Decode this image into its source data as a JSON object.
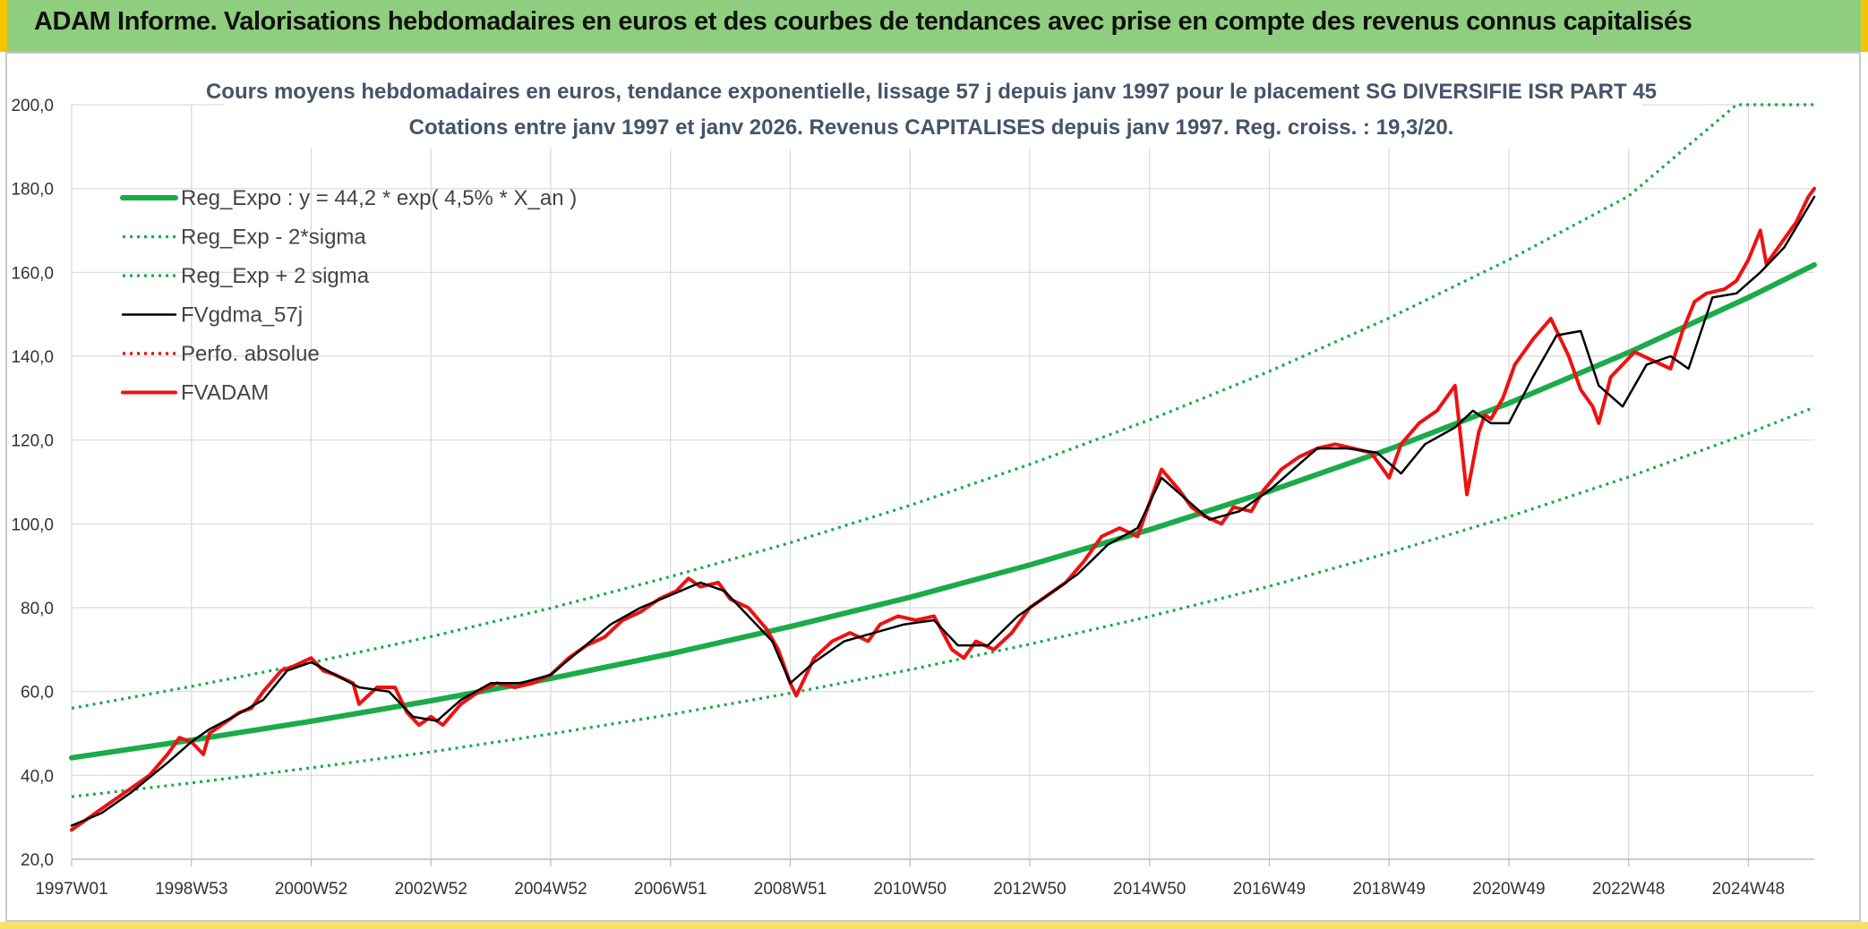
{
  "header": {
    "title": "ADAM Informe. Valorisations hebdomadaires en euros et des courbes de tendances avec prise en compte des revenus connus capitalisés"
  },
  "chart_data": {
    "type": "line",
    "title": "Cours moyens hebdomadaires en euros, tendance exponentielle, lissage 57 j depuis janv 1997 pour le placement SG DIVERSIFIE ISR PART 45",
    "subtitle": "Cotations entre janv 1997 et janv 2026. Revenus CAPITALISES depuis janv 1997. Reg. croiss. : 19,3/20.",
    "xlabel": "",
    "ylabel": "",
    "xlim": [
      1997.0,
      2026.1
    ],
    "ylim": [
      20,
      200
    ],
    "y_ticks": [
      "20,0",
      "40,0",
      "60,0",
      "80,0",
      "100,0",
      "120,0",
      "140,0",
      "160,0",
      "180,0",
      "200,0"
    ],
    "x_ticks": [
      {
        "label": "1997W01",
        "x": 1997.0
      },
      {
        "label": "1998W53",
        "x": 1999.0
      },
      {
        "label": "2000W52",
        "x": 2001.0
      },
      {
        "label": "2002W52",
        "x": 2003.0
      },
      {
        "label": "2004W52",
        "x": 2005.0
      },
      {
        "label": "2006W51",
        "x": 2007.0
      },
      {
        "label": "2008W51",
        "x": 2009.0
      },
      {
        "label": "2010W50",
        "x": 2011.0
      },
      {
        "label": "2012W50",
        "x": 2013.0
      },
      {
        "label": "2014W50",
        "x": 2015.0
      },
      {
        "label": "2016W49",
        "x": 2017.0
      },
      {
        "label": "2018W49",
        "x": 2019.0
      },
      {
        "label": "2020W49",
        "x": 2021.0
      },
      {
        "label": "2022W48",
        "x": 2023.0
      },
      {
        "label": "2024W48",
        "x": 2025.0
      }
    ],
    "grid": true,
    "legend_position": "top-left",
    "series": [
      {
        "name": "Reg_Expo : y = 44,2 * exp( 4,5% *  X_an )",
        "color": "#1aab4a",
        "style": "solid-thick",
        "x": [
          1997,
          1999,
          2001,
          2003,
          2005,
          2007,
          2009,
          2011,
          2013,
          2015,
          2017,
          2019,
          2021,
          2023,
          2025,
          2026.1
        ],
        "y": [
          44.2,
          48.4,
          52.9,
          57.8,
          63.1,
          69.0,
          75.5,
          82.5,
          90.2,
          98.6,
          107.8,
          117.8,
          128.8,
          140.9,
          154.0,
          161.8
        ]
      },
      {
        "name": "Reg_Exp - 2*sigma",
        "color": "#1aab4a",
        "style": "dotted",
        "x": [
          1997,
          1999,
          2001,
          2003,
          2005,
          2007,
          2009,
          2011,
          2013,
          2015,
          2017,
          2019,
          2021,
          2023,
          2025,
          2026.1
        ],
        "y": [
          34.9,
          38.2,
          41.8,
          45.6,
          49.9,
          54.5,
          59.6,
          65.2,
          71.3,
          77.9,
          85.1,
          93.1,
          101.7,
          111.2,
          121.6,
          127.8
        ]
      },
      {
        "name": "Reg_Exp + 2 sigma",
        "color": "#1aab4a",
        "style": "dotted",
        "x": [
          1997,
          1999,
          2001,
          2003,
          2005,
          2007,
          2009,
          2011,
          2013,
          2015,
          2017,
          2019,
          2021,
          2023,
          2024.8,
          2026.1
        ],
        "y": [
          56.0,
          61.2,
          66.9,
          73.1,
          79.9,
          87.4,
          95.5,
          104.4,
          114.2,
          124.8,
          136.4,
          149.1,
          163.0,
          178.2,
          200.0,
          200.0
        ]
      },
      {
        "name": "FVgdma_57j",
        "color": "#000000",
        "style": "solid",
        "x": [
          1997.0,
          1997.5,
          1998.0,
          1998.6,
          1999.0,
          1999.3,
          1999.7,
          2000.2,
          2000.6,
          2001.0,
          2001.4,
          2001.8,
          2002.3,
          2002.7,
          2003.1,
          2003.5,
          2004.0,
          2004.5,
          2005.0,
          2005.5,
          2006.0,
          2006.5,
          2007.0,
          2007.5,
          2007.9,
          2008.3,
          2008.7,
          2009.0,
          2009.4,
          2009.9,
          2010.4,
          2010.9,
          2011.4,
          2011.8,
          2012.3,
          2012.8,
          2013.3,
          2013.8,
          2014.3,
          2014.8,
          2015.2,
          2015.6,
          2016.0,
          2016.5,
          2017.0,
          2017.4,
          2017.8,
          2018.3,
          2018.8,
          2019.2,
          2019.6,
          2020.1,
          2020.4,
          2020.7,
          2021.0,
          2021.4,
          2021.8,
          2022.2,
          2022.5,
          2022.9,
          2023.3,
          2023.7,
          2024.0,
          2024.4,
          2024.8,
          2025.2,
          2025.6,
          2026.1
        ],
        "y": [
          28,
          31,
          36,
          43,
          48,
          51,
          54,
          58,
          65,
          67,
          64,
          61,
          60,
          54,
          53,
          58,
          62,
          62,
          64,
          70,
          76,
          80,
          83,
          86,
          84,
          78,
          72,
          62,
          67,
          72,
          74,
          76,
          77,
          71,
          71,
          78,
          83,
          88,
          95,
          99,
          111,
          106,
          101,
          103,
          108,
          113,
          118,
          118,
          117,
          112,
          119,
          123,
          127,
          124,
          124,
          135,
          145,
          146,
          133,
          128,
          138,
          140,
          137,
          154,
          155,
          160,
          166,
          178
        ]
      },
      {
        "name": "Perfo. absolue",
        "color": "#e00000",
        "style": "dotted",
        "x": [],
        "y": []
      },
      {
        "name": "FVADAM",
        "color": "#ee1111",
        "style": "solid-thick",
        "x": [
          1997.0,
          1997.2,
          1997.5,
          1997.7,
          1998.0,
          1998.3,
          1998.6,
          1998.8,
          1999.0,
          1999.2,
          1999.3,
          1999.6,
          1999.8,
          2000.0,
          2000.2,
          2000.5,
          2000.7,
          2001.0,
          2001.2,
          2001.4,
          2001.7,
          2001.8,
          2002.1,
          2002.4,
          2002.6,
          2002.8,
          2003.0,
          2003.2,
          2003.5,
          2003.8,
          2004.1,
          2004.4,
          2004.7,
          2005.0,
          2005.3,
          2005.6,
          2005.9,
          2006.2,
          2006.5,
          2006.8,
          2007.1,
          2007.3,
          2007.5,
          2007.8,
          2008.0,
          2008.3,
          2008.6,
          2008.8,
          2009.0,
          2009.1,
          2009.4,
          2009.7,
          2010.0,
          2010.3,
          2010.5,
          2010.8,
          2011.1,
          2011.4,
          2011.7,
          2011.9,
          2012.1,
          2012.4,
          2012.7,
          2013.0,
          2013.3,
          2013.6,
          2013.9,
          2014.2,
          2014.5,
          2014.8,
          2015.0,
          2015.2,
          2015.5,
          2015.7,
          2015.9,
          2016.2,
          2016.4,
          2016.7,
          2016.9,
          2017.2,
          2017.5,
          2017.8,
          2018.1,
          2018.4,
          2018.7,
          2019.0,
          2019.2,
          2019.5,
          2019.8,
          2020.1,
          2020.3,
          2020.5,
          2020.6,
          2020.7,
          2020.9,
          2021.1,
          2021.4,
          2021.7,
          2022.0,
          2022.2,
          2022.4,
          2022.5,
          2022.7,
          2022.9,
          2023.1,
          2023.4,
          2023.7,
          2023.9,
          2024.1,
          2024.3,
          2024.6,
          2024.8,
          2025.0,
          2025.2,
          2025.3,
          2025.5,
          2025.8,
          2026.0,
          2026.1
        ],
        "y": [
          27,
          29,
          32,
          34,
          37,
          40,
          45,
          49,
          48,
          45,
          50,
          53,
          55,
          56,
          60,
          65,
          66,
          68,
          65,
          64,
          62,
          57,
          61,
          61,
          55,
          52,
          54,
          52,
          57,
          60,
          62,
          61,
          62,
          64,
          68,
          71,
          73,
          77,
          79,
          82,
          84,
          87,
          85,
          86,
          82,
          80,
          75,
          70,
          62,
          59,
          68,
          72,
          74,
          72,
          76,
          78,
          77,
          78,
          70,
          68,
          72,
          70,
          74,
          80,
          83,
          86,
          91,
          97,
          99,
          97,
          105,
          113,
          108,
          104,
          102,
          100,
          104,
          103,
          108,
          113,
          116,
          118,
          119,
          118,
          117,
          111,
          119,
          124,
          127,
          133,
          107,
          122,
          126,
          125,
          130,
          138,
          144,
          149,
          140,
          132,
          128,
          124,
          135,
          138,
          141,
          139,
          137,
          146,
          153,
          155,
          156,
          158,
          163,
          170,
          162,
          166,
          172,
          178,
          180
        ]
      }
    ]
  }
}
